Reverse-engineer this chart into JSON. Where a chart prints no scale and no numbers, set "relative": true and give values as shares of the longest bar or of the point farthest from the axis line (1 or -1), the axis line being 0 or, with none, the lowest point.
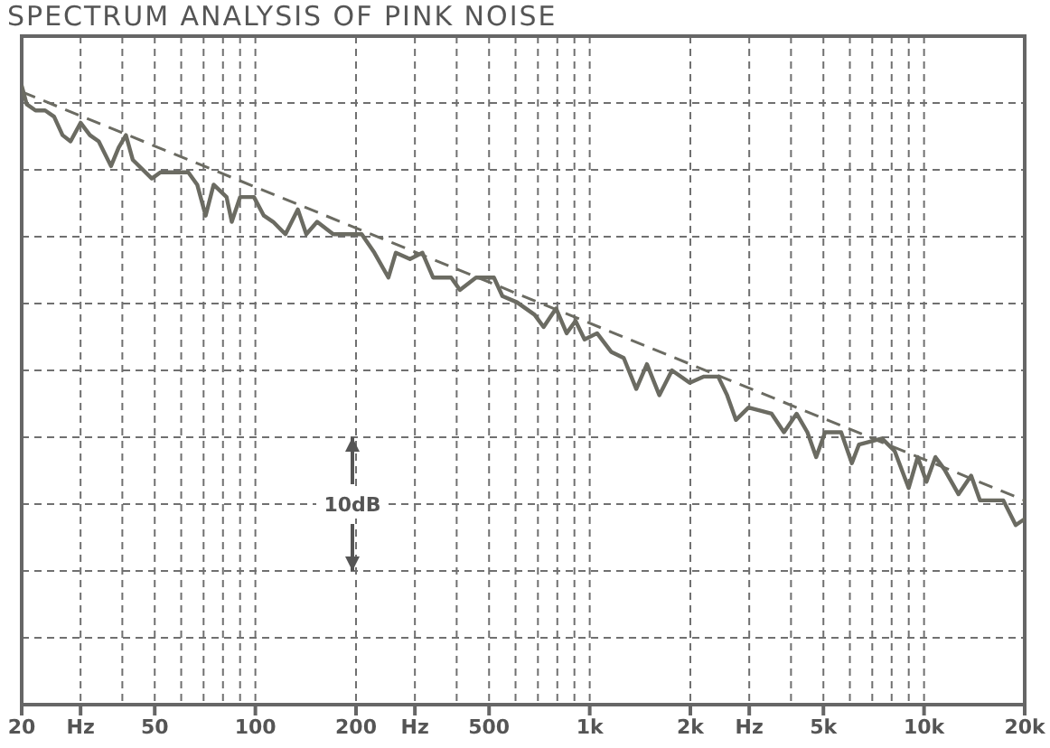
{
  "chart_data": {
    "type": "line",
    "title": "SPECTRUM ANALYSIS OF PINK NOISE",
    "relative": true,
    "log": "x",
    "grid": true,
    "marker": "none",
    "xlim": [
      20,
      20000
    ],
    "xticks": [
      20,
      {
        "value": 30,
        "label": "Hz"
      },
      50,
      100,
      200,
      {
        "value": 300,
        "label": "Hz"
      },
      500,
      {
        "value": 1000,
        "label": "1k"
      },
      {
        "value": 2000,
        "label": "2k"
      },
      {
        "value": 3000,
        "label": "Hz"
      },
      {
        "value": 5000,
        "label": "5k"
      },
      {
        "value": 10000,
        "label": "10k"
      },
      {
        "value": 20000,
        "label": "20k"
      }
    ],
    "annotations": [
      "10dB"
    ],
    "series": [
      {
        "color": "#6b6b62",
        "line_style": "solid",
        "x": [
          20,
          20.7,
          22,
          23.5,
          25,
          26.5,
          28,
          30,
          32,
          34,
          37,
          39,
          41,
          43,
          49,
          52,
          57,
          63,
          67,
          71,
          75,
          82,
          85,
          90,
          99,
          106,
          113,
          123,
          134,
          142,
          153,
          171,
          189,
          208,
          227,
          250,
          263,
          290,
          316,
          340,
          385,
          409,
          457,
          517,
          548,
          606,
          684,
          728,
          793,
          853,
          907,
          965,
          1052,
          1159,
          1264,
          1378,
          1483,
          1615,
          1762,
          1991,
          2197,
          2422,
          2576,
          2737,
          2985,
          3500,
          3811,
          4157,
          4478,
          4757,
          5058,
          5650,
          6082,
          6385,
          7486,
          8163,
          8995,
          9570,
          10168,
          10812,
          11507,
          12680,
          13830,
          14700,
          16030,
          17260,
          18800,
          20000
        ],
        "values": [
          1.0,
          0.97,
          0.96,
          0.96,
          0.95,
          0.92,
          0.91,
          0.94,
          0.92,
          0.91,
          0.87,
          0.9,
          0.92,
          0.88,
          0.85,
          0.86,
          0.86,
          0.86,
          0.84,
          0.79,
          0.84,
          0.82,
          0.78,
          0.82,
          0.82,
          0.79,
          0.78,
          0.76,
          0.8,
          0.76,
          0.78,
          0.76,
          0.76,
          0.76,
          0.73,
          0.69,
          0.73,
          0.72,
          0.73,
          0.69,
          0.69,
          0.67,
          0.69,
          0.69,
          0.66,
          0.65,
          0.63,
          0.61,
          0.64,
          0.6,
          0.62,
          0.59,
          0.6,
          0.57,
          0.56,
          0.51,
          0.55,
          0.5,
          0.54,
          0.52,
          0.53,
          0.53,
          0.5,
          0.46,
          0.48,
          0.47,
          0.44,
          0.47,
          0.44,
          0.4,
          0.44,
          0.44,
          0.39,
          0.42,
          0.43,
          0.41,
          0.35,
          0.4,
          0.36,
          0.4,
          0.38,
          0.34,
          0.37,
          0.33,
          0.33,
          0.33,
          0.29,
          0.3
        ]
      },
      {
        "color": "#6b6b62",
        "line_style": "dashed",
        "x": [
          20,
          20000
        ],
        "values": [
          0.99,
          0.33
        ]
      }
    ]
  }
}
